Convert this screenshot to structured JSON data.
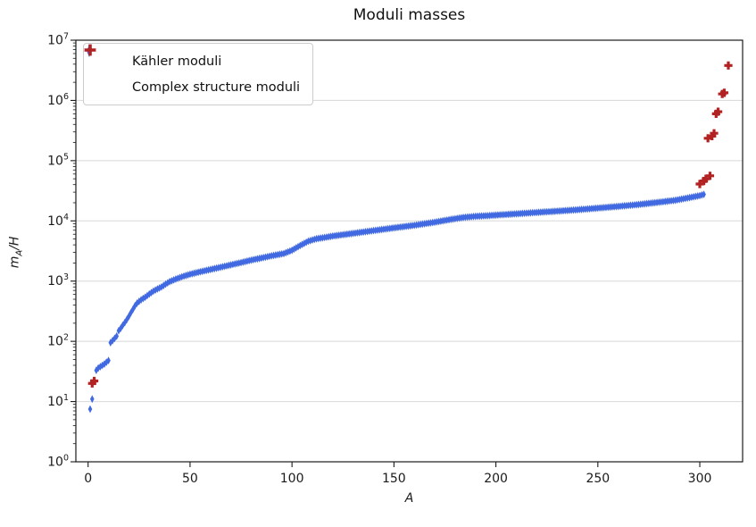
{
  "figure": {
    "title": "Moduli masses",
    "xlabel": "A",
    "ylabel": {
      "base": "m",
      "sub": "A",
      "sep": "/",
      "tail": "H"
    }
  },
  "legend": {
    "position": "upper-left",
    "items": [
      {
        "label": "Kähler moduli",
        "marker": "thin-diamond",
        "color": "#4169e1"
      },
      {
        "label": "Complex structure moduli",
        "marker": "plus",
        "color": "#b22222"
      }
    ]
  },
  "chart_data": {
    "type": "scatter",
    "title": "Moduli masses",
    "xlabel": "A",
    "ylabel": "m_A/H",
    "xlim": [
      -6,
      321
    ],
    "ylim": [
      1,
      10000000
    ],
    "x_ticks": [
      0,
      50,
      100,
      150,
      200,
      250,
      300
    ],
    "y_tick_exponents": [
      0,
      1,
      2,
      3,
      4,
      5,
      6,
      7
    ],
    "grid": "horizontal-major-only",
    "grid_color": "#d8d8d8",
    "axis_color": "#1a1a1a",
    "legend_position": "upper-left",
    "series": [
      {
        "name": "Kähler moduli",
        "marker": "thin-diamond",
        "color": "#4169e1",
        "n_points": 301,
        "x_start": 1,
        "x_end": 302,
        "skip_x": [
          3
        ],
        "anchors": [
          [
            1,
            7.5
          ],
          [
            2,
            11
          ],
          [
            4,
            33
          ],
          [
            5,
            36
          ],
          [
            6,
            38
          ],
          [
            7,
            40
          ],
          [
            8,
            42
          ],
          [
            9,
            45
          ],
          [
            10,
            48
          ],
          [
            11,
            95
          ],
          [
            12,
            103
          ],
          [
            13,
            112
          ],
          [
            14,
            122
          ],
          [
            15,
            150
          ],
          [
            16,
            165
          ],
          [
            17,
            185
          ],
          [
            18,
            205
          ],
          [
            19,
            230
          ],
          [
            20,
            260
          ],
          [
            21,
            300
          ],
          [
            22,
            340
          ],
          [
            23,
            390
          ],
          [
            24,
            430
          ],
          [
            25,
            460
          ],
          [
            26,
            490
          ],
          [
            27,
            515
          ],
          [
            28,
            540
          ],
          [
            30,
            610
          ],
          [
            32,
            680
          ],
          [
            34,
            740
          ],
          [
            36,
            800
          ],
          [
            38,
            890
          ],
          [
            40,
            980
          ],
          [
            43,
            1080
          ],
          [
            46,
            1180
          ],
          [
            50,
            1300
          ],
          [
            55,
            1430
          ],
          [
            60,
            1560
          ],
          [
            65,
            1700
          ],
          [
            70,
            1860
          ],
          [
            75,
            2030
          ],
          [
            80,
            2230
          ],
          [
            85,
            2420
          ],
          [
            90,
            2630
          ],
          [
            96,
            2870
          ],
          [
            100,
            3250
          ],
          [
            104,
            3900
          ],
          [
            108,
            4600
          ],
          [
            112,
            5050
          ],
          [
            116,
            5300
          ],
          [
            120,
            5600
          ],
          [
            130,
            6200
          ],
          [
            140,
            6900
          ],
          [
            150,
            7650
          ],
          [
            160,
            8450
          ],
          [
            170,
            9500
          ],
          [
            178,
            10600
          ],
          [
            184,
            11400
          ],
          [
            190,
            11900
          ],
          [
            196,
            12200
          ],
          [
            202,
            12600
          ],
          [
            210,
            13100
          ],
          [
            220,
            13800
          ],
          [
            230,
            14500
          ],
          [
            240,
            15300
          ],
          [
            250,
            16300
          ],
          [
            260,
            17400
          ],
          [
            270,
            18700
          ],
          [
            280,
            20400
          ],
          [
            288,
            22000
          ],
          [
            294,
            24000
          ],
          [
            298,
            25500
          ],
          [
            300,
            26300
          ],
          [
            302,
            27500
          ]
        ]
      },
      {
        "name": "Complex structure moduli",
        "marker": "plus",
        "color": "#b22222",
        "points": [
          [
            2,
            20
          ],
          [
            3,
            22
          ],
          [
            300,
            41000
          ],
          [
            302,
            46000
          ],
          [
            303,
            50000
          ],
          [
            305,
            56000
          ],
          [
            304,
            235000
          ],
          [
            306,
            255000
          ],
          [
            307,
            285000
          ],
          [
            308,
            600000
          ],
          [
            309,
            650000
          ],
          [
            311,
            1280000
          ],
          [
            312,
            1340000
          ],
          [
            314,
            3800000
          ]
        ]
      }
    ]
  }
}
